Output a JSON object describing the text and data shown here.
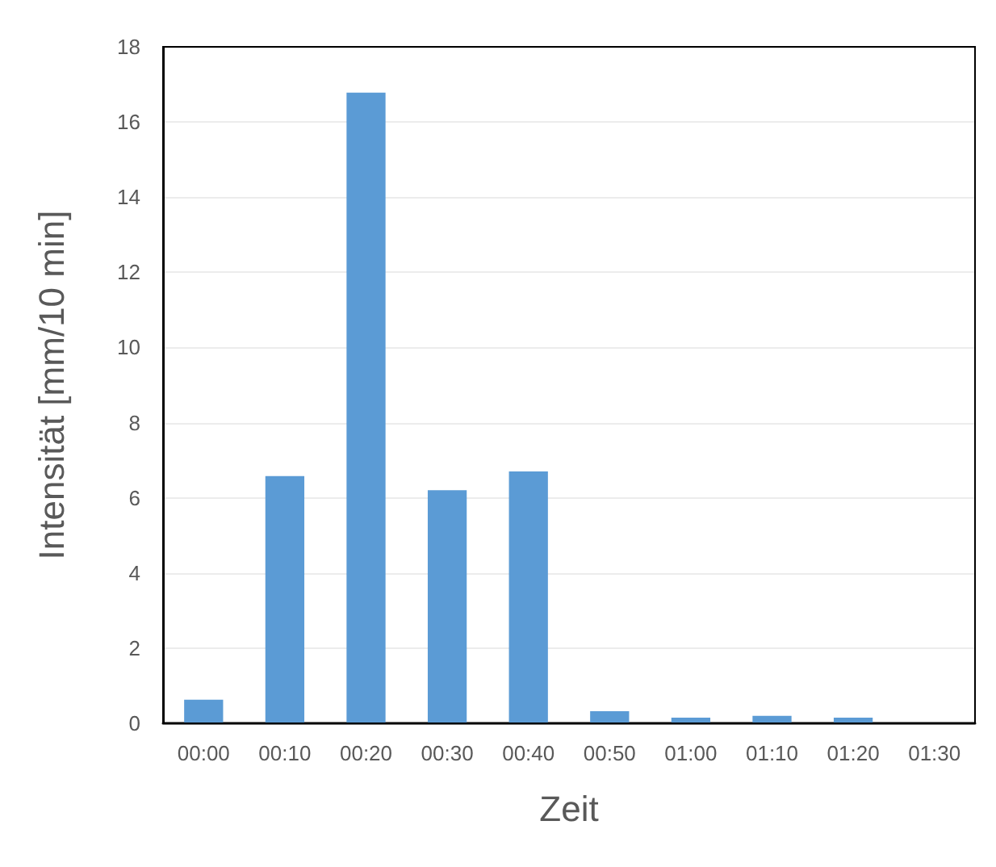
{
  "chart_data": {
    "type": "bar",
    "xlabel": "Zeit",
    "ylabel": "Intensität [mm/10 min]",
    "categories": [
      "00:00",
      "00:10",
      "00:20",
      "00:30",
      "00:40",
      "00:50",
      "01:00",
      "01:10",
      "01:20",
      "01:30"
    ],
    "values": [
      0.63,
      6.58,
      16.78,
      6.2,
      6.7,
      0.32,
      0.15,
      0.2,
      0.15,
      0
    ],
    "color": "#5b9bd5",
    "ylim": [
      0,
      18
    ],
    "yticks": [
      0,
      2,
      4,
      6,
      8,
      10,
      12,
      14,
      16,
      18
    ],
    "grid": "y"
  }
}
